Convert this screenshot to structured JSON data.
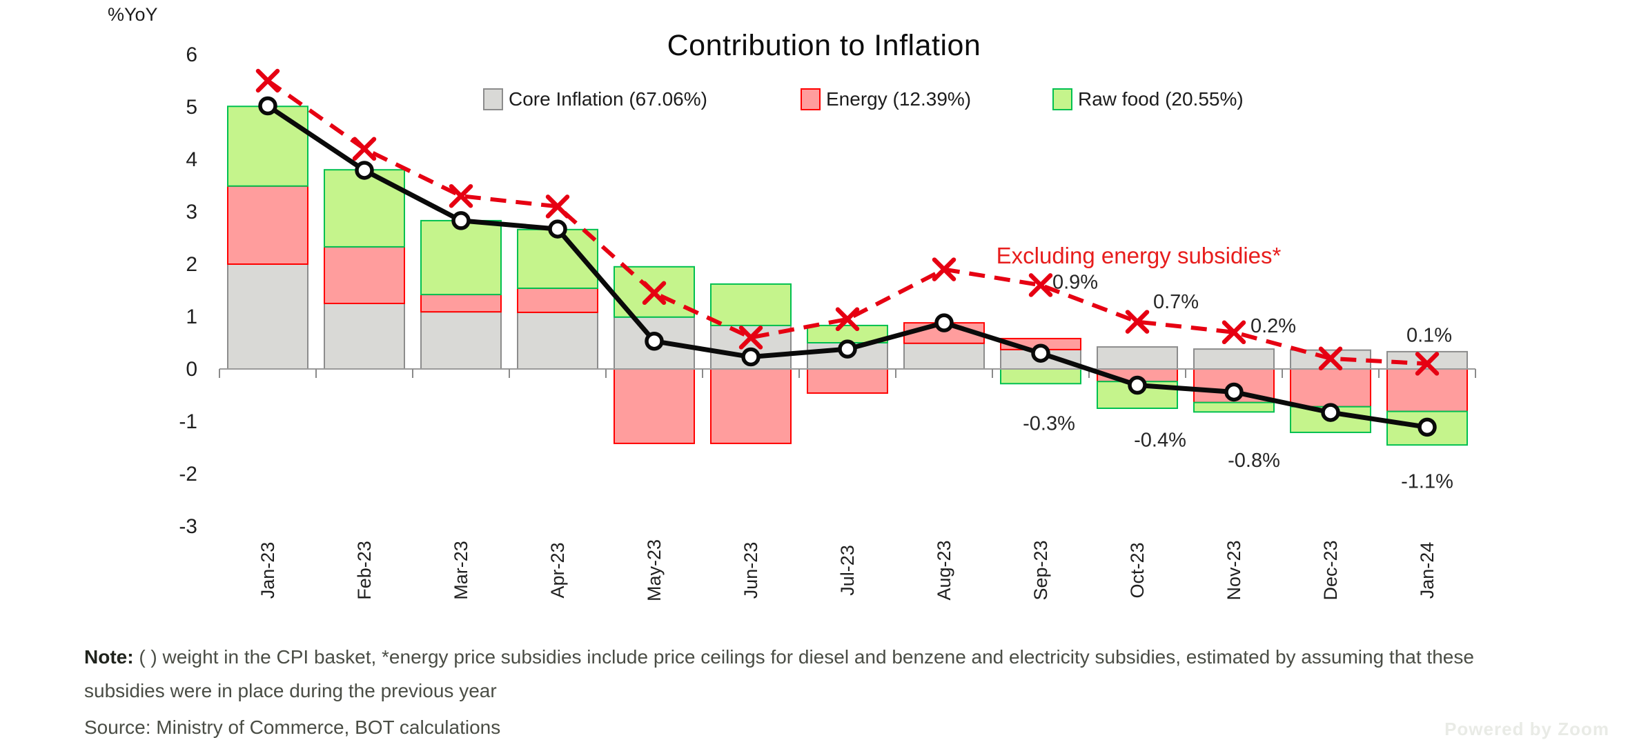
{
  "y_axis_label": "%YoY",
  "title": "Contribution to Inflation",
  "legend": [
    {
      "label": "Core Inflation (67.06%)",
      "fill": "#d9d9d6",
      "stroke": "#8c8c8c"
    },
    {
      "label": "Energy (12.39%)",
      "fill": "#ff9d9d",
      "stroke": "#ff0000"
    },
    {
      "label": "Raw food (20.55%)",
      "fill": "#c5f48c",
      "stroke": "#00c050"
    }
  ],
  "annotation": "Excluding energy subsidies*",
  "note_prefix": "Note:",
  "note_line1": " ( ) weight in the CPI basket, *energy price subsidies include price ceilings for diesel and benzene and electricity subsidies, estimated by assuming that these",
  "note_line2": "subsidies were in place during the previous year",
  "source": "Source: Ministry of Commerce, BOT calculations",
  "watermark": "Powered by Zoom",
  "chart_data": {
    "type": "combo-stacked-bar-with-lines",
    "categories": [
      "Jan-23",
      "Feb-23",
      "Mar-23",
      "Apr-23",
      "May-23",
      "Jun-23",
      "Jul-23",
      "Aug-23",
      "Sep-23",
      "Oct-23",
      "Nov-23",
      "Dec-23",
      "Jan-24"
    ],
    "y_axis": {
      "min": -3,
      "max": 6,
      "tick_step": 1,
      "tick_labels": [
        "6",
        "5",
        "4",
        "3",
        "2",
        "1",
        "0",
        "-1",
        "-2",
        "-3"
      ]
    },
    "grid": false,
    "legend_position": "top",
    "series": [
      {
        "name": "Core Inflation (67.06%)",
        "type": "bar-stacked",
        "values": [
          2.0,
          1.25,
          1.09,
          1.08,
          0.99,
          0.83,
          0.5,
          0.49,
          0.37,
          0.42,
          0.38,
          0.36,
          0.33
        ]
      },
      {
        "name": "Energy (12.39%)",
        "type": "bar-stacked",
        "values": [
          1.49,
          1.08,
          0.33,
          0.46,
          -1.42,
          -1.42,
          -0.46,
          0.39,
          0.21,
          -0.24,
          -0.64,
          -0.72,
          -0.81
        ]
      },
      {
        "name": "Raw food (20.55%)",
        "type": "bar-stacked",
        "values": [
          1.52,
          1.47,
          1.41,
          1.12,
          0.96,
          0.79,
          0.33,
          0.0,
          -0.28,
          -0.51,
          -0.18,
          -0.49,
          -0.64
        ]
      },
      {
        "name": "Headline inflation",
        "type": "line",
        "marker": "circle",
        "color": "#0a0a0a",
        "values": [
          5.02,
          3.79,
          2.83,
          2.67,
          0.53,
          0.23,
          0.38,
          0.88,
          0.3,
          -0.31,
          -0.44,
          -0.83,
          -1.11
        ]
      },
      {
        "name": "Excluding energy subsidies*",
        "type": "line-dashed",
        "marker": "x",
        "color": "#e60012",
        "values": [
          5.5,
          4.2,
          3.3,
          3.1,
          1.45,
          0.6,
          0.95,
          1.9,
          1.6,
          0.9,
          0.7,
          0.2,
          0.1
        ]
      }
    ],
    "point_labels": {
      "excluding_energy_subsidies": [
        {
          "month": "Oct-23",
          "text": "0.9%"
        },
        {
          "month": "Nov-23",
          "text": "0.7%"
        },
        {
          "month": "Dec-23",
          "text": "0.2%"
        },
        {
          "month": "Jan-24",
          "text": "0.1%"
        }
      ],
      "headline": [
        {
          "month": "Oct-23",
          "text": "-0.3%"
        },
        {
          "month": "Nov-23",
          "text": "-0.4%"
        },
        {
          "month": "Dec-23",
          "text": "-0.8%"
        },
        {
          "month": "Jan-24",
          "text": "-1.1%"
        }
      ]
    }
  }
}
